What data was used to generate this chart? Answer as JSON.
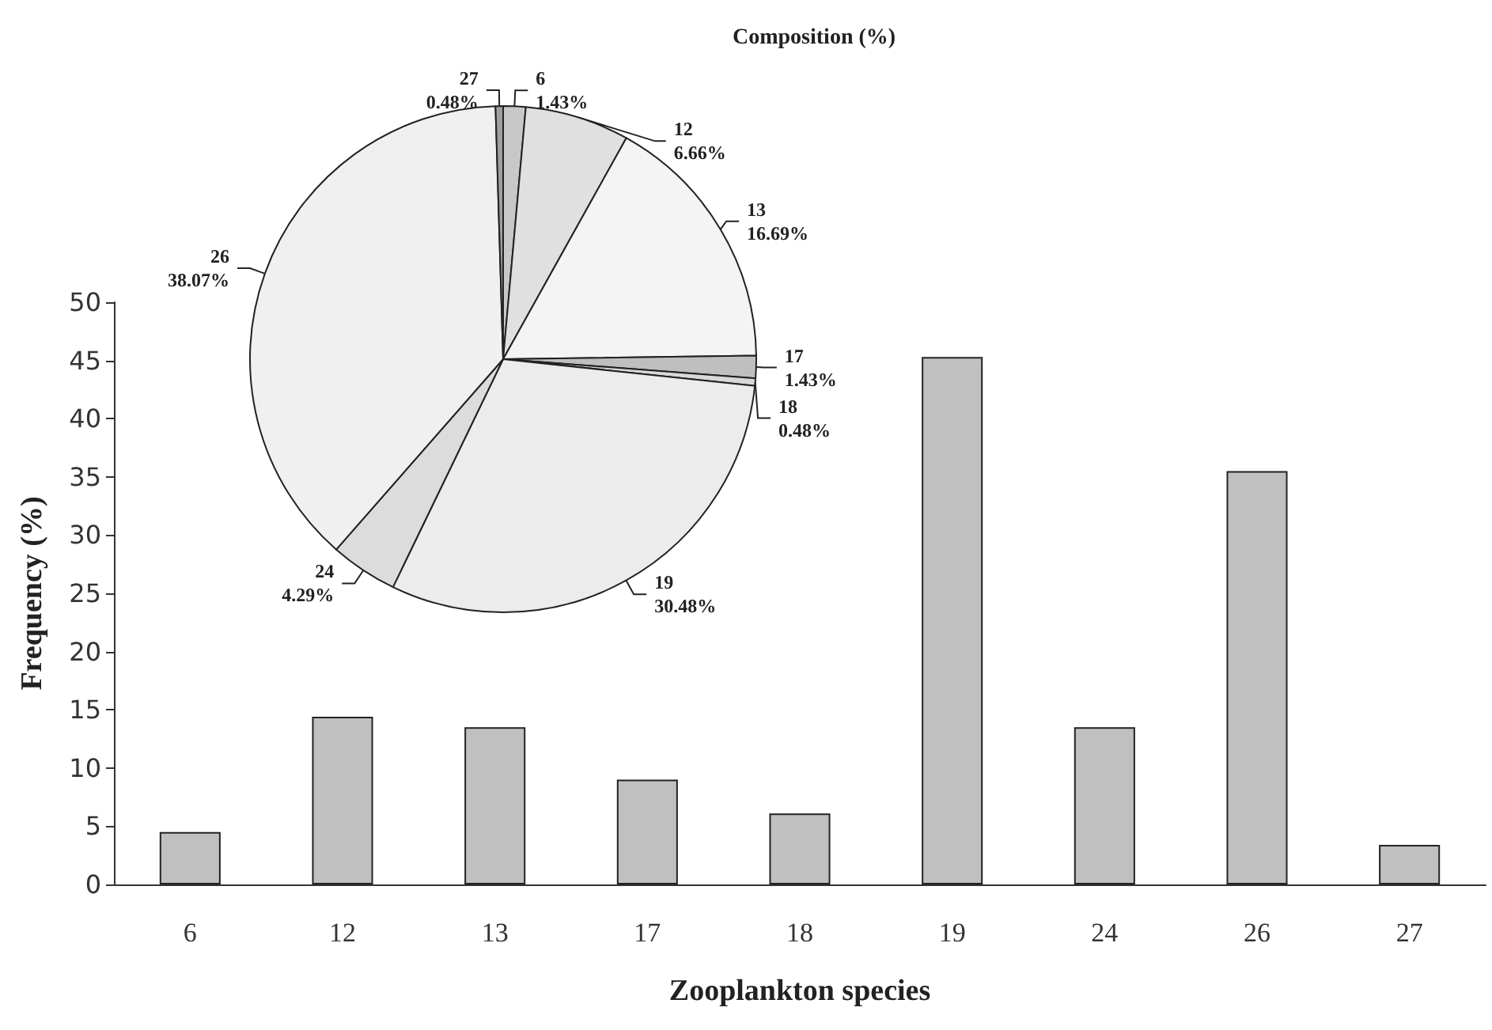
{
  "chart_data": [
    {
      "type": "bar",
      "xlabel": "Zooplankton species",
      "ylabel": "Frequency (%)",
      "categories": [
        "6",
        "12",
        "13",
        "17",
        "18",
        "19",
        "24",
        "26",
        "27"
      ],
      "values": [
        4.5,
        14.4,
        13.5,
        9.0,
        6.1,
        45.3,
        13.5,
        35.5,
        3.4
      ],
      "color": "#c0c0c0",
      "ylim": [
        0,
        50
      ],
      "yticks": [
        0,
        5,
        10,
        15,
        20,
        25,
        30,
        35,
        40,
        45,
        50
      ],
      "grid": false
    },
    {
      "type": "pie",
      "title": "Composition (%)",
      "categories": [
        "6",
        "12",
        "13",
        "17",
        "18",
        "19",
        "24",
        "26",
        "27"
      ],
      "values": [
        1.43,
        6.66,
        16.69,
        1.43,
        0.48,
        30.48,
        4.29,
        38.07,
        0.48
      ],
      "colors": [
        "#c8c8c8",
        "#e0e0e0",
        "#f4f4f4",
        "#bfbfbf",
        "#d8d8d8",
        "#ececec",
        "#dcdcdc",
        "#f0f0f0",
        "#a0a0a0"
      ],
      "value_labels": [
        "1.43%",
        "6.66%",
        "16.69%",
        "1.43%",
        "0.48%",
        "30.48%",
        "4.29%",
        "38.07%",
        "0.48%"
      ]
    }
  ]
}
